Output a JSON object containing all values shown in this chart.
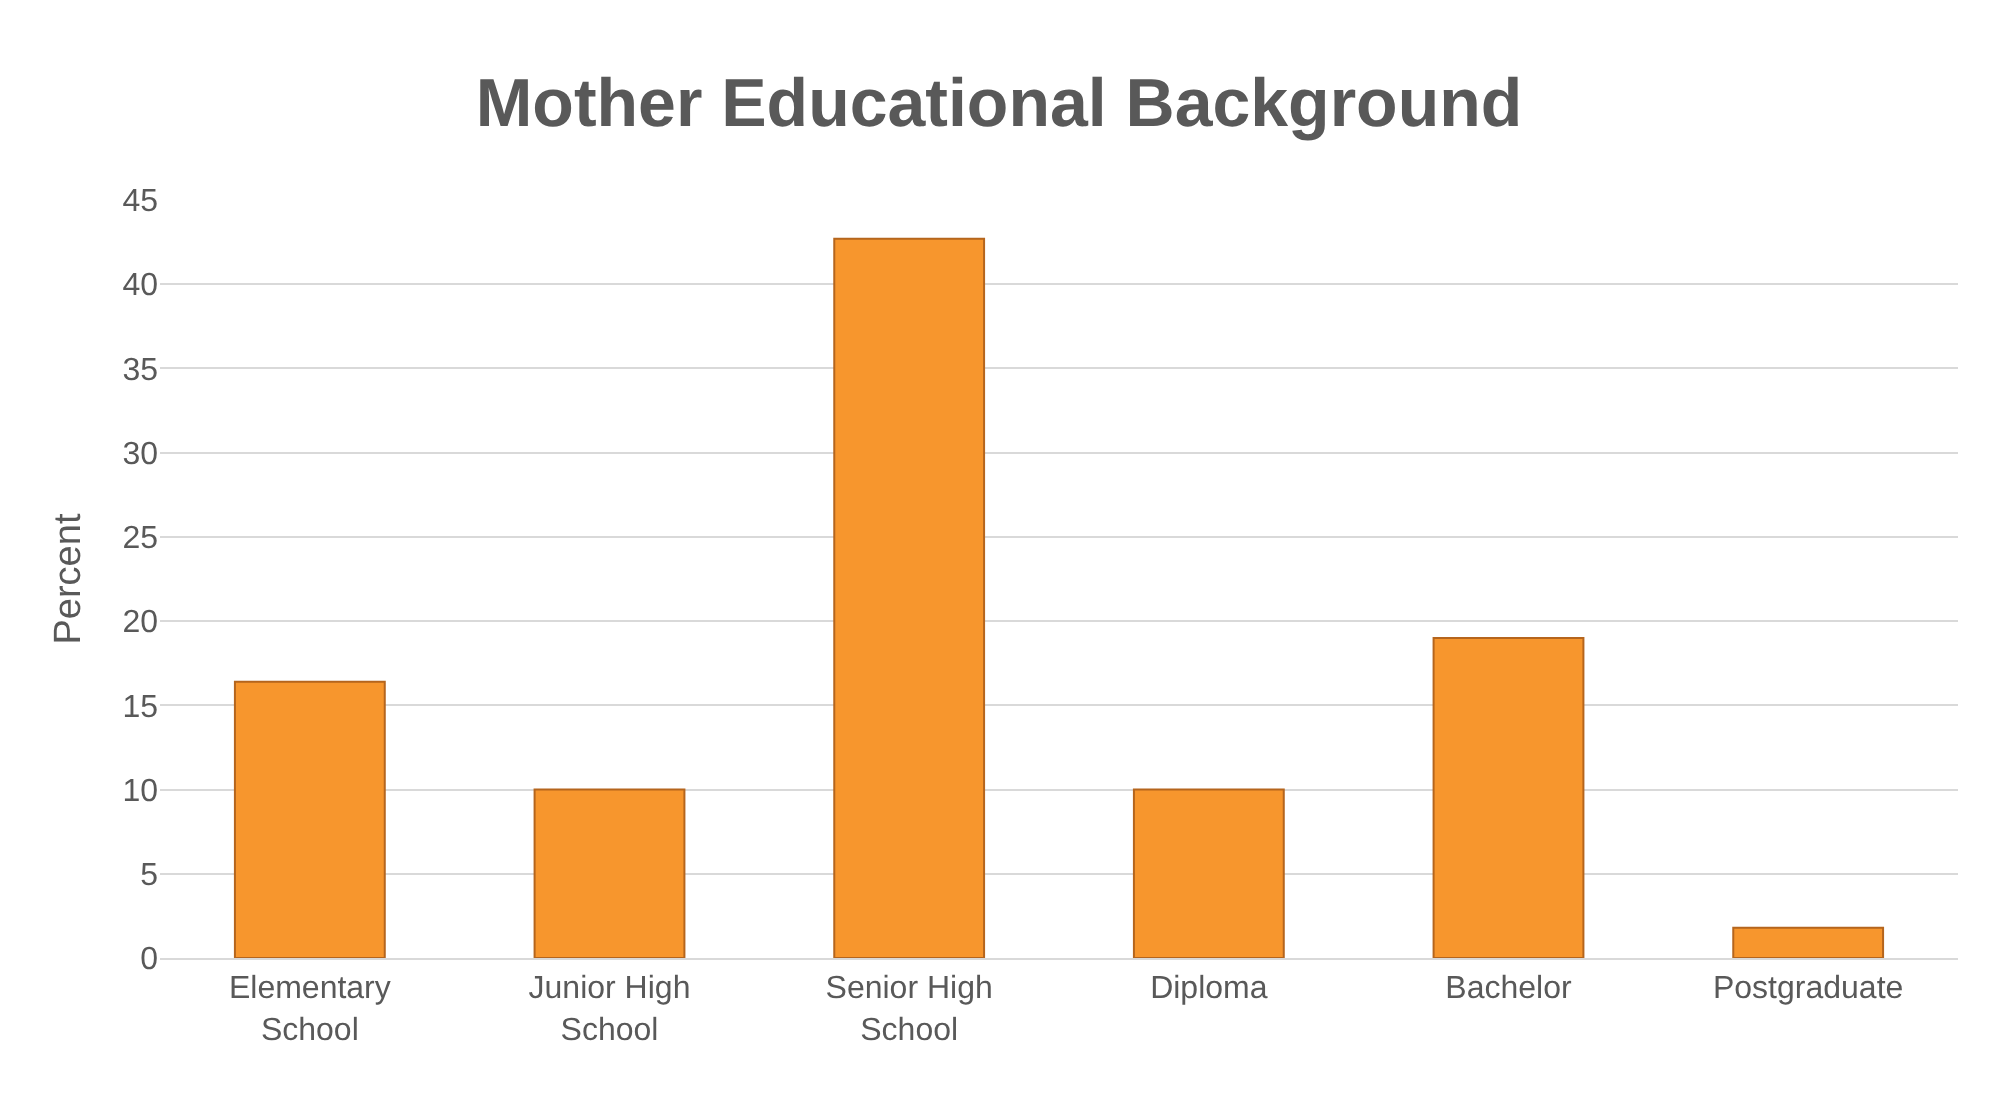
{
  "chart_data": {
    "type": "bar",
    "title": "Mother Educational Background",
    "ylabel": "Percent",
    "categories": [
      "Elementary School",
      "Junior High School",
      "Senior High School",
      "Diploma",
      "Bachelor",
      "Postgraduate"
    ],
    "values": [
      16.4,
      10,
      42.7,
      10,
      19.0,
      1.8
    ],
    "color": "#f7962d",
    "ylim": [
      0,
      45
    ],
    "yticks": [
      0,
      5,
      10,
      15,
      20,
      25,
      30,
      35,
      40,
      45
    ],
    "grid": "y"
  }
}
